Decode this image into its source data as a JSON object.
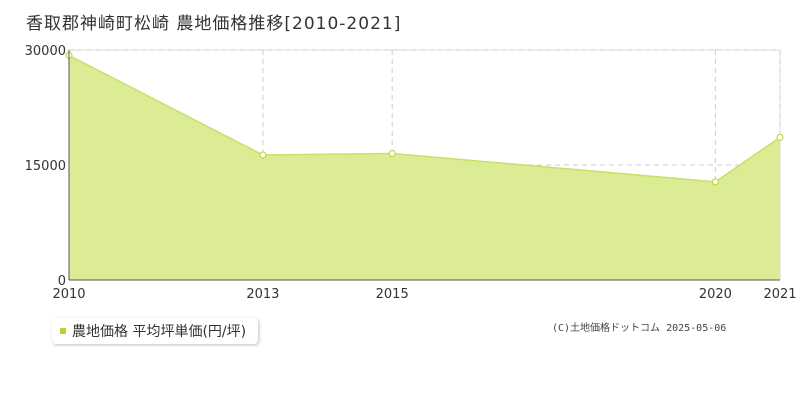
{
  "chart_data": {
    "type": "area",
    "title": "香取郡神崎町松崎 農地価格推移[2010-2021]",
    "x": [
      2010,
      2013,
      2015,
      2020,
      2021
    ],
    "x_tick_labels": [
      "2010",
      "2013",
      "2015",
      "2020",
      "2021"
    ],
    "series": [
      {
        "name": "農地価格 平均坪単価(円/坪)",
        "values": [
          29300,
          16300,
          16500,
          12800,
          18600
        ]
      }
    ],
    "y_ticks": [
      0,
      15000,
      30000
    ],
    "y_tick_labels": [
      "0",
      "15000",
      "30000"
    ],
    "xlim": [
      2010,
      2021
    ],
    "ylim": [
      0,
      30000
    ],
    "grid": true,
    "legend_position": "bottom-left",
    "colors": {
      "fill": "#dcec94",
      "line": "#c6e06a",
      "marker": "#b5d631",
      "grid": "#cccccc"
    }
  },
  "copyright": "(C)土地価格ドットコム 2025-05-06"
}
